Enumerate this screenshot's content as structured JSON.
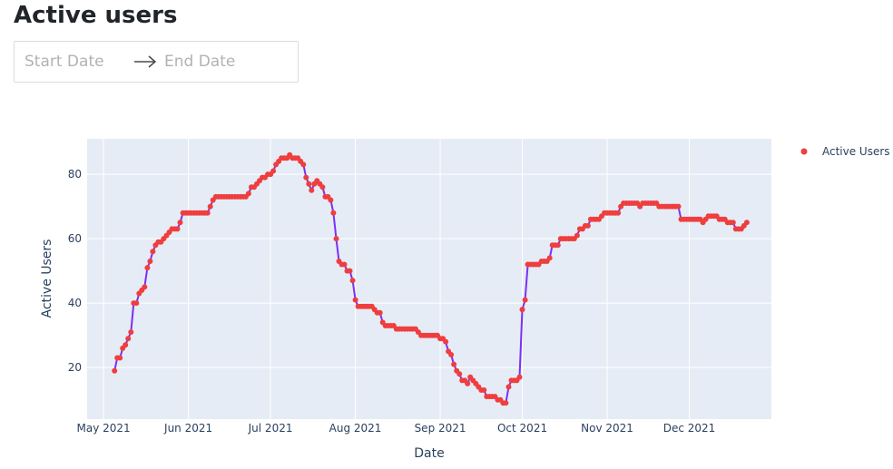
{
  "page": {
    "title": "Active users"
  },
  "date_range": {
    "start_placeholder": "Start Date",
    "end_placeholder": "End Date",
    "separator_icon": "arrow-right-icon"
  },
  "chart_data": {
    "type": "line",
    "title": "",
    "xlabel": "Date",
    "ylabel": "Active Users",
    "xlim": [
      "2021-04-25",
      "2021-12-31"
    ],
    "ylim": [
      4,
      91
    ],
    "x_ticks": [
      {
        "date": "2021-05-01",
        "label": "May 2021"
      },
      {
        "date": "2021-06-01",
        "label": "Jun 2021"
      },
      {
        "date": "2021-07-01",
        "label": "Jul 2021"
      },
      {
        "date": "2021-08-01",
        "label": "Aug 2021"
      },
      {
        "date": "2021-09-01",
        "label": "Sep 2021"
      },
      {
        "date": "2021-10-01",
        "label": "Oct 2021"
      },
      {
        "date": "2021-11-01",
        "label": "Nov 2021"
      },
      {
        "date": "2021-12-01",
        "label": "Dec 2021"
      }
    ],
    "y_ticks": [
      20,
      40,
      60,
      80
    ],
    "grid": true,
    "legend_position": "top-right",
    "line_color": "#7b2ff7",
    "marker_color": "#ef3e3e",
    "plot_bgcolor": "#e5ecf6",
    "series": [
      {
        "name": "Active Users",
        "start_date": "2021-05-05",
        "values": [
          19,
          23,
          23,
          26,
          27,
          29,
          31,
          40,
          40,
          43,
          44,
          45,
          51,
          53,
          56,
          58,
          59,
          59,
          60,
          61,
          62,
          63,
          63,
          63,
          65,
          68,
          68,
          68,
          68,
          68,
          68,
          68,
          68,
          68,
          68,
          70,
          72,
          73,
          73,
          73,
          73,
          73,
          73,
          73,
          73,
          73,
          73,
          73,
          73,
          74,
          76,
          76,
          77,
          78,
          79,
          79,
          80,
          80,
          81,
          83,
          84,
          85,
          85,
          85,
          86,
          85,
          85,
          85,
          84,
          83,
          79,
          77,
          75,
          77,
          78,
          77,
          76,
          73,
          73,
          72,
          68,
          60,
          53,
          52,
          52,
          50,
          50,
          47,
          41,
          39,
          39,
          39,
          39,
          39,
          39,
          38,
          37,
          37,
          34,
          33,
          33,
          33,
          33,
          32,
          32,
          32,
          32,
          32,
          32,
          32,
          32,
          31,
          30,
          30,
          30,
          30,
          30,
          30,
          30,
          29,
          29,
          28,
          25,
          24,
          21,
          19,
          18,
          16,
          16,
          15,
          17,
          16,
          15,
          14,
          13,
          13,
          11,
          11,
          11,
          11,
          10,
          10,
          9,
          9,
          14,
          16,
          16,
          16,
          17,
          38,
          41,
          52,
          52,
          52,
          52,
          52,
          53,
          53,
          53,
          54,
          58,
          58,
          58,
          60,
          60,
          60,
          60,
          60,
          60,
          61,
          63,
          63,
          64,
          64,
          66,
          66,
          66,
          66,
          67,
          68,
          68,
          68,
          68,
          68,
          68,
          70,
          71,
          71,
          71,
          71,
          71,
          71,
          70,
          71,
          71,
          71,
          71,
          71,
          71,
          70,
          70,
          70,
          70,
          70,
          70,
          70,
          70,
          66,
          66,
          66,
          66,
          66,
          66,
          66,
          66,
          65,
          66,
          67,
          67,
          67,
          67,
          66,
          66,
          66,
          65,
          65,
          65,
          63,
          63,
          63,
          64,
          65
        ]
      }
    ]
  }
}
